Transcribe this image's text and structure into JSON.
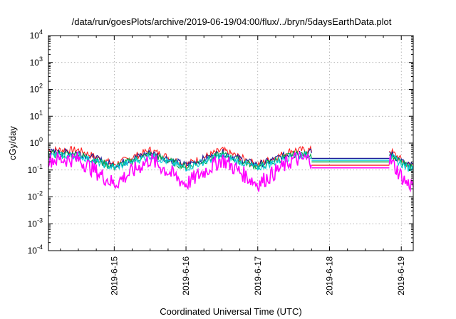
{
  "chart_data": {
    "type": "line",
    "title": "/data/run/goesPlots/archive/2019-06-19/04:00/flux/../bryn/5daysEarthData.plot",
    "xlabel": "Coordinated Universal Time (UTC)",
    "ylabel": "cGy/day",
    "x_axis": {
      "scale": "time",
      "range": [
        "2019-06-14 02:00",
        "2019-06-19 04:00"
      ],
      "ticks": [
        "2019-6-15",
        "2019-6-16",
        "2019-6-17",
        "2019-6-18",
        "2019-6-19"
      ],
      "data_gap": [
        "2019-06-17 18:00",
        "2019-06-18 20:00"
      ]
    },
    "y_axis": {
      "scale": "log",
      "range": [
        0.0001,
        10000
      ],
      "ticks": [
        {
          "base": "10",
          "exp": "-4",
          "value": 0.0001
        },
        {
          "base": "10",
          "exp": "-3",
          "value": 0.001
        },
        {
          "base": "10",
          "exp": "-2",
          "value": 0.01
        },
        {
          "base": "10",
          "exp": "-1",
          "value": 0.1
        },
        {
          "base": "10",
          "exp": "0",
          "value": 1
        },
        {
          "base": "10",
          "exp": "1",
          "value": 10
        },
        {
          "base": "10",
          "exp": "2",
          "value": 100
        },
        {
          "base": "10",
          "exp": "3",
          "value": 1000
        },
        {
          "base": "10",
          "exp": "4",
          "value": 10000
        }
      ]
    },
    "grid": true,
    "legend": "none",
    "series": [
      {
        "color": "#ff2020",
        "band": [
          0.16,
          0.55
        ],
        "level": 0.15
      },
      {
        "color": "#1a1a9a",
        "band": [
          0.15,
          0.45
        ],
        "level": 0.27
      },
      {
        "color": "#00aa44",
        "band": [
          0.13,
          0.38
        ],
        "level": 0.2
      },
      {
        "color": "#00c8d8",
        "band": [
          0.12,
          0.34
        ],
        "level": 0.23
      },
      {
        "color": "#ff00ff",
        "band": [
          0.03,
          0.25
        ],
        "level": 0.12
      }
    ],
    "daily_peaks": [
      {
        "x": "2019-06-14 12:00",
        "y": 0.45
      },
      {
        "x": "2019-06-15 12:00",
        "y": 0.45
      },
      {
        "x": "2019-06-16 12:00",
        "y": 0.45
      },
      {
        "x": "2019-06-17 12:00",
        "y": 0.45
      },
      {
        "x": "2019-06-18 20:00",
        "y": 0.45
      }
    ],
    "daily_troughs": [
      {
        "x": "2019-06-15 00:00",
        "y": 0.12
      },
      {
        "x": "2019-06-16 00:00",
        "y": 0.12
      },
      {
        "x": "2019-06-17 00:00",
        "y": 0.12
      },
      {
        "x": "2019-06-19 02:00",
        "y": 0.12
      }
    ]
  }
}
